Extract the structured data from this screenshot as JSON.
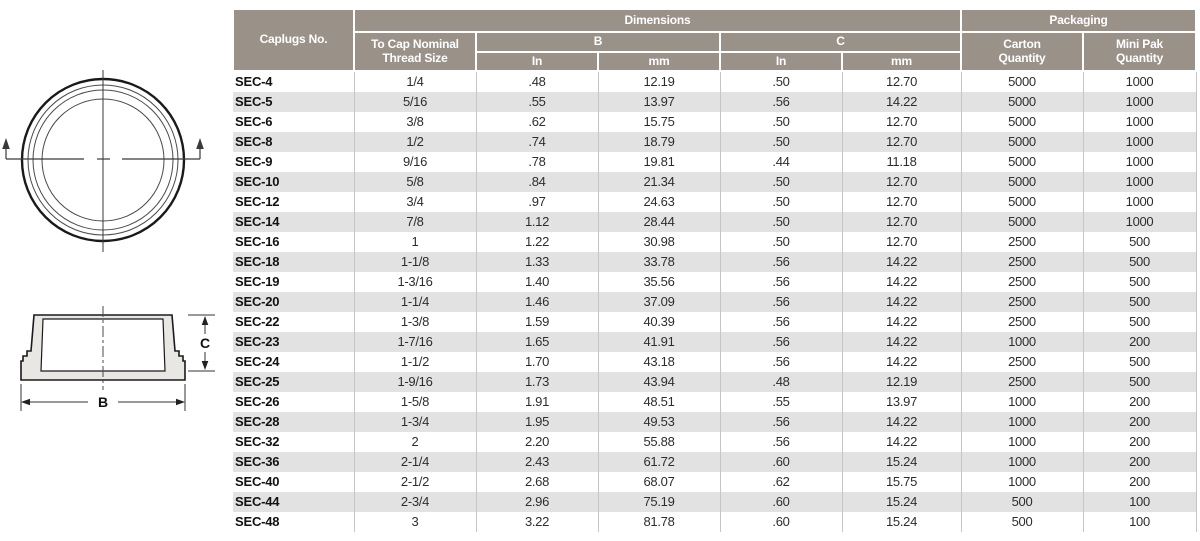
{
  "drawing": {
    "dim_b_label": "B",
    "dim_c_label": "C"
  },
  "table": {
    "header": {
      "caplugs_no": "Caplugs No.",
      "dimensions": "Dimensions",
      "packaging": "Packaging",
      "thread_size": [
        "To Cap Nominal",
        "Thread Size"
      ],
      "b": "B",
      "c": "C",
      "in_b": "In",
      "mm_b": "mm",
      "in_c": "In",
      "mm_c": "mm",
      "carton_qty": [
        "Carton",
        "Quantity"
      ],
      "mini_pak_qty": [
        "Mini Pak",
        "Quantity"
      ]
    },
    "rows": [
      [
        "SEC-4",
        "1/4",
        ".48",
        "12.19",
        ".50",
        "12.70",
        "5000",
        "1000"
      ],
      [
        "SEC-5",
        "5/16",
        ".55",
        "13.97",
        ".56",
        "14.22",
        "5000",
        "1000"
      ],
      [
        "SEC-6",
        "3/8",
        ".62",
        "15.75",
        ".50",
        "12.70",
        "5000",
        "1000"
      ],
      [
        "SEC-8",
        "1/2",
        ".74",
        "18.79",
        ".50",
        "12.70",
        "5000",
        "1000"
      ],
      [
        "SEC-9",
        "9/16",
        ".78",
        "19.81",
        ".44",
        "11.18",
        "5000",
        "1000"
      ],
      [
        "SEC-10",
        "5/8",
        ".84",
        "21.34",
        ".50",
        "12.70",
        "5000",
        "1000"
      ],
      [
        "SEC-12",
        "3/4",
        ".97",
        "24.63",
        ".50",
        "12.70",
        "5000",
        "1000"
      ],
      [
        "SEC-14",
        "7/8",
        "1.12",
        "28.44",
        ".50",
        "12.70",
        "5000",
        "1000"
      ],
      [
        "SEC-16",
        "1",
        "1.22",
        "30.98",
        ".50",
        "12.70",
        "2500",
        "500"
      ],
      [
        "SEC-18",
        "1-1/8",
        "1.33",
        "33.78",
        ".56",
        "14.22",
        "2500",
        "500"
      ],
      [
        "SEC-19",
        "1-3/16",
        "1.40",
        "35.56",
        ".56",
        "14.22",
        "2500",
        "500"
      ],
      [
        "SEC-20",
        "1-1/4",
        "1.46",
        "37.09",
        ".56",
        "14.22",
        "2500",
        "500"
      ],
      [
        "SEC-22",
        "1-3/8",
        "1.59",
        "40.39",
        ".56",
        "14.22",
        "2500",
        "500"
      ],
      [
        "SEC-23",
        "1-7/16",
        "1.65",
        "41.91",
        ".56",
        "14.22",
        "1000",
        "200"
      ],
      [
        "SEC-24",
        "1-1/2",
        "1.70",
        "43.18",
        ".56",
        "14.22",
        "2500",
        "500"
      ],
      [
        "SEC-25",
        "1-9/16",
        "1.73",
        "43.94",
        ".48",
        "12.19",
        "2500",
        "500"
      ],
      [
        "SEC-26",
        "1-5/8",
        "1.91",
        "48.51",
        ".55",
        "13.97",
        "1000",
        "200"
      ],
      [
        "SEC-28",
        "1-3/4",
        "1.95",
        "49.53",
        ".56",
        "14.22",
        "1000",
        "200"
      ],
      [
        "SEC-32",
        "2",
        "2.20",
        "55.88",
        ".56",
        "14.22",
        "1000",
        "200"
      ],
      [
        "SEC-36",
        "2-1/4",
        "2.43",
        "61.72",
        ".60",
        "15.24",
        "1000",
        "200"
      ],
      [
        "SEC-40",
        "2-1/2",
        "2.68",
        "68.07",
        ".62",
        "15.75",
        "1000",
        "200"
      ],
      [
        "SEC-44",
        "2-3/4",
        "2.96",
        "75.19",
        ".60",
        "15.24",
        "500",
        "100"
      ],
      [
        "SEC-48",
        "3",
        "3.22",
        "81.78",
        ".60",
        "15.24",
        "500",
        "100"
      ]
    ]
  },
  "colors": {
    "header_bg": "#9a9189",
    "stripe": "#e2e2e2",
    "cell_text": "#2e2d2b",
    "sep": "#c6c6c6",
    "draw_fill": "#e8e7e4",
    "draw_line": "#1a1a1a"
  }
}
